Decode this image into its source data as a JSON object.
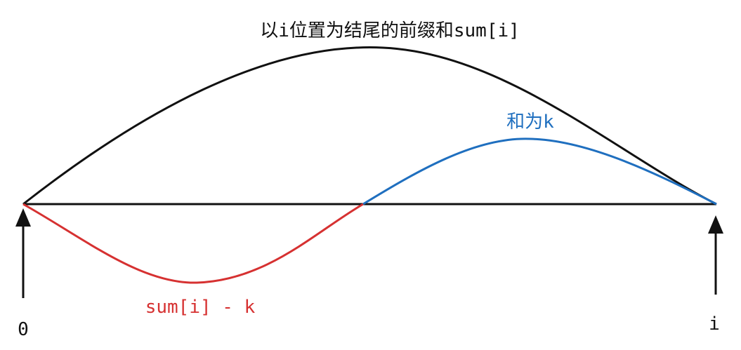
{
  "labels": {
    "top": "以i位置为结尾的前缀和sum[i]",
    "right_arc": "和为k",
    "left_arc": "sum[i] - k",
    "start": "0",
    "end": "i"
  }
}
